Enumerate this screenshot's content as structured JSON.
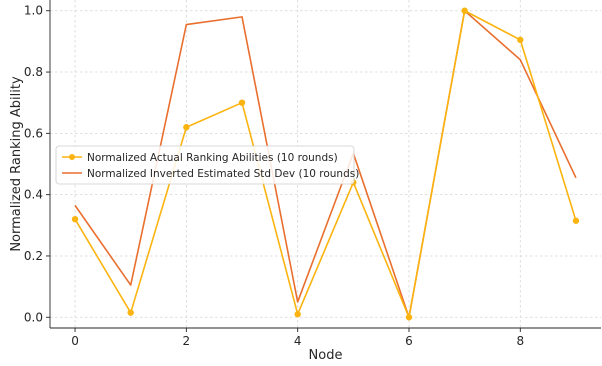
{
  "chart_data": {
    "type": "line",
    "title": "",
    "xlabel": "Node",
    "ylabel": "Normalized Ranking Ability",
    "x": [
      0,
      1,
      2,
      3,
      4,
      5,
      6,
      7,
      8,
      9
    ],
    "xlim": [
      -0.45,
      9.45
    ],
    "ylim": [
      -0.035,
      1.035
    ],
    "xticks": [
      0,
      2,
      4,
      6,
      8
    ],
    "yticks": [
      0.0,
      0.2,
      0.4,
      0.6,
      0.8,
      1.0
    ],
    "xtick_labels": [
      "0",
      "2",
      "4",
      "6",
      "8"
    ],
    "ytick_labels": [
      "0.0",
      "0.2",
      "0.4",
      "0.6",
      "0.8",
      "1.0"
    ],
    "grid": true,
    "legend_position": "center-left",
    "series": [
      {
        "name": "Normalized Actual Ranking Abilities (10 rounds)",
        "values": [
          0.32,
          0.015,
          0.62,
          0.7,
          0.01,
          0.44,
          0.0,
          1.0,
          0.905,
          0.315
        ],
        "color": "#fbb40f",
        "marker": "circle"
      },
      {
        "name": "Normalized Inverted Estimated Std Dev (10 rounds)",
        "values": [
          0.365,
          0.105,
          0.955,
          0.98,
          0.05,
          0.535,
          0.0,
          1.0,
          0.84,
          0.455
        ],
        "color": "#e96f2e",
        "marker": "none"
      }
    ]
  }
}
